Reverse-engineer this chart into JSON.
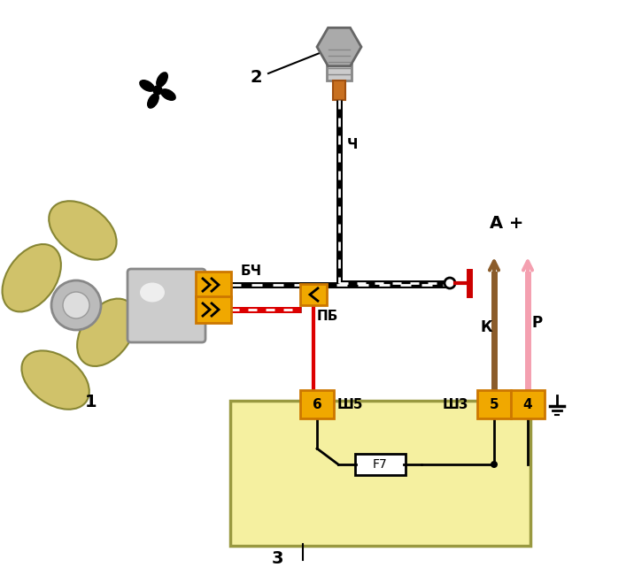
{
  "bg_color": "#ffffff",
  "fan_color": "#c8b84a",
  "motor_color": "#aaaaaa",
  "connector_color": "#f0a800",
  "box_color": "#f5f0a0",
  "wire_black": "#111111",
  "wire_red": "#dd0000",
  "wire_brown": "#8B5c2a",
  "wire_pink": "#f4a0b0",
  "label_1": "1",
  "label_2": "2",
  "label_3": "3",
  "label_bch": "БЧ",
  "label_pb": "ПБ",
  "label_ch": "Ч",
  "label_sh5": "Ш5",
  "label_sh3": "Ш3",
  "label_A": "А +",
  "label_K": "К",
  "label_P": "Р",
  "label_F7": "F7",
  "label_4": "4",
  "label_5": "5",
  "label_6": "6"
}
